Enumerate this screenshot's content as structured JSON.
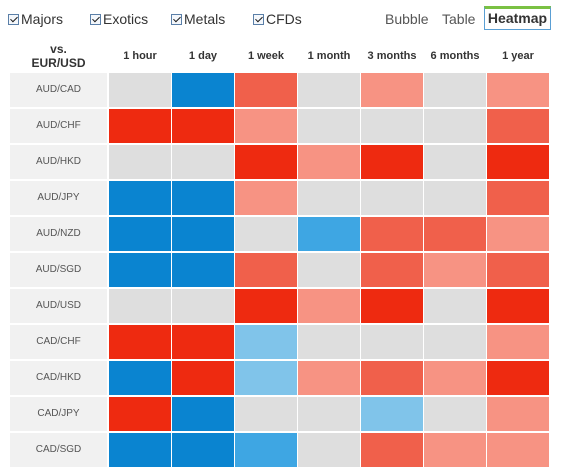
{
  "filters": [
    {
      "label": "Majors",
      "checked": true
    },
    {
      "label": "Exotics",
      "checked": true
    },
    {
      "label": "Metals",
      "checked": true
    },
    {
      "label": "CFDs",
      "checked": true
    }
  ],
  "views": {
    "bubble": "Bubble",
    "table": "Table",
    "heatmap": "Heatmap",
    "active": "Heatmap"
  },
  "base": {
    "line1": "vs.",
    "line2": "EUR/USD"
  },
  "periods": [
    "1 hour",
    "1 day",
    "1 week",
    "1 month",
    "3 months",
    "6 months",
    "1 year"
  ],
  "colors": {
    "neutral": "#dedede",
    "strong_blue": "#0a84d0",
    "medium_blue": "#3ea6e3",
    "light_blue": "#80c4ea",
    "strong_red": "#ee2a10",
    "medium_red": "#f0604b",
    "light_red": "#f79383"
  },
  "rows": [
    {
      "pair": "AUD/CAD",
      "cells": [
        "neutral",
        "strong_blue",
        "medium_red",
        "neutral",
        "light_red",
        "neutral",
        "light_red"
      ]
    },
    {
      "pair": "AUD/CHF",
      "cells": [
        "strong_red",
        "strong_red",
        "light_red",
        "neutral",
        "neutral",
        "neutral",
        "medium_red"
      ]
    },
    {
      "pair": "AUD/HKD",
      "cells": [
        "neutral",
        "neutral",
        "strong_red",
        "light_red",
        "strong_red",
        "neutral",
        "strong_red"
      ]
    },
    {
      "pair": "AUD/JPY",
      "cells": [
        "strong_blue",
        "strong_blue",
        "light_red",
        "neutral",
        "neutral",
        "neutral",
        "medium_red"
      ]
    },
    {
      "pair": "AUD/NZD",
      "cells": [
        "strong_blue",
        "strong_blue",
        "neutral",
        "medium_blue",
        "medium_red",
        "medium_red",
        "light_red"
      ]
    },
    {
      "pair": "AUD/SGD",
      "cells": [
        "strong_blue",
        "strong_blue",
        "medium_red",
        "neutral",
        "medium_red",
        "light_red",
        "medium_red"
      ]
    },
    {
      "pair": "AUD/USD",
      "cells": [
        "neutral",
        "neutral",
        "strong_red",
        "light_red",
        "strong_red",
        "neutral",
        "strong_red"
      ]
    },
    {
      "pair": "CAD/CHF",
      "cells": [
        "strong_red",
        "strong_red",
        "light_blue",
        "neutral",
        "neutral",
        "neutral",
        "light_red"
      ]
    },
    {
      "pair": "CAD/HKD",
      "cells": [
        "strong_blue",
        "strong_red",
        "light_blue",
        "light_red",
        "medium_red",
        "light_red",
        "strong_red"
      ]
    },
    {
      "pair": "CAD/JPY",
      "cells": [
        "strong_red",
        "strong_blue",
        "neutral",
        "neutral",
        "light_blue",
        "neutral",
        "light_red"
      ]
    },
    {
      "pair": "CAD/SGD",
      "cells": [
        "strong_blue",
        "strong_blue",
        "medium_blue",
        "neutral",
        "medium_red",
        "light_red",
        "light_red"
      ]
    }
  ]
}
